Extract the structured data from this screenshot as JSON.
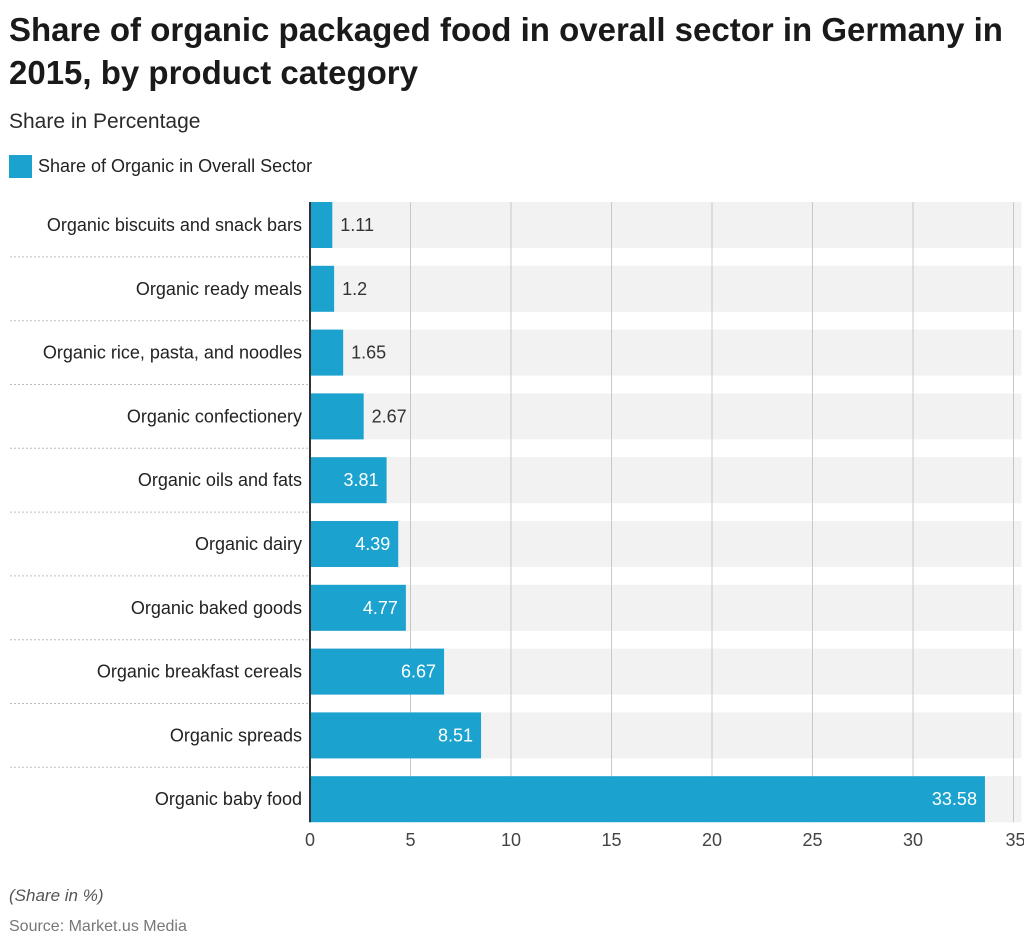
{
  "title": "Share of organic packaged food in overall sector in Germany in 2015, by product category",
  "subtitle": "Share in Percentage",
  "legend_label": "Share of Organic in Overall Sector",
  "footnote": "(Share in %)",
  "source": "Source: Market.us Media",
  "colors": {
    "bar": "#1ba2cf",
    "band": "#f2f2f2",
    "grid": "#c8c8c8",
    "axis": "#333333"
  },
  "chart_data": {
    "type": "bar",
    "orientation": "horizontal",
    "categories": [
      "Organic biscuits and snack bars",
      "Organic ready meals",
      "Organic rice, pasta, and noodles",
      "Organic confectionery",
      "Organic oils and fats",
      "Organic dairy",
      "Organic baked goods",
      "Organic breakfast cereals",
      "Organic spreads",
      "Organic baby food"
    ],
    "series": [
      {
        "name": "Share of Organic in Overall Sector",
        "values": [
          1.11,
          1.2,
          1.65,
          2.67,
          3.81,
          4.39,
          4.77,
          6.67,
          8.51,
          33.58
        ]
      }
    ],
    "value_labels": [
      "1.11",
      "1.2",
      "1.65",
      "2.67",
      "3.81",
      "4.39",
      "4.77",
      "6.67",
      "8.51",
      "33.58"
    ],
    "xlim": [
      0,
      35
    ],
    "xticks": [
      0,
      5,
      10,
      15,
      20,
      25,
      30,
      35
    ],
    "grid": true,
    "legend_position": "top-left"
  }
}
